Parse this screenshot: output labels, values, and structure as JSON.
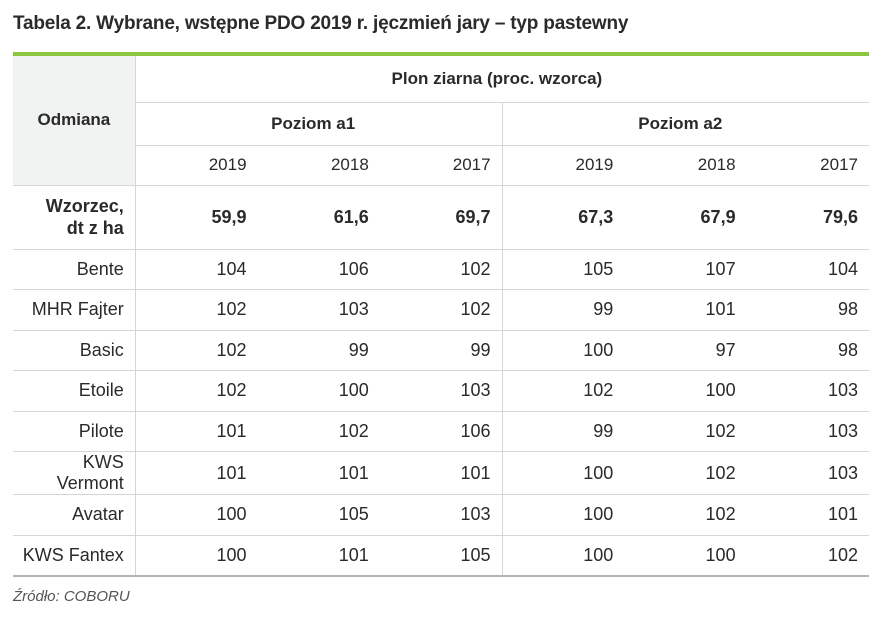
{
  "title": "Tabela 2. Wybrane, wstępne PDO 2019 r. jęczmień jary – typ pastewny",
  "header": {
    "odmiana": "Odmiana",
    "group_title": "Plon ziarna (proc. wzorca)",
    "level_a1": "Poziom a1",
    "level_a2": "Poziom a2",
    "years": [
      "2019",
      "2018",
      "2017",
      "2019",
      "2018",
      "2017"
    ]
  },
  "wzorzec": {
    "label_line1": "Wzorzec,",
    "label_line2": "dt z ha",
    "values": [
      "59,9",
      "61,6",
      "69,7",
      "67,3",
      "67,9",
      "79,6"
    ]
  },
  "rows": [
    {
      "name": "Bente",
      "values": [
        "104",
        "106",
        "102",
        "105",
        "107",
        "104"
      ]
    },
    {
      "name": "MHR Fajter",
      "values": [
        "102",
        "103",
        "102",
        "99",
        "101",
        "98"
      ]
    },
    {
      "name": "Basic",
      "values": [
        "102",
        "99",
        "99",
        "100",
        "97",
        "98"
      ]
    },
    {
      "name": "Etoile",
      "values": [
        "102",
        "100",
        "103",
        "102",
        "100",
        "103"
      ]
    },
    {
      "name": "Pilote",
      "values": [
        "101",
        "102",
        "106",
        "99",
        "102",
        "103"
      ]
    },
    {
      "name": "KWS Vermont",
      "values": [
        "101",
        "101",
        "101",
        "100",
        "102",
        "103"
      ]
    },
    {
      "name": "Avatar",
      "values": [
        "100",
        "105",
        "103",
        "100",
        "102",
        "101"
      ]
    },
    {
      "name": "KWS Fantex",
      "values": [
        "100",
        "101",
        "105",
        "100",
        "100",
        "102"
      ]
    }
  ],
  "source": "Źródło: COBORU",
  "colors": {
    "accent_rule": "#8cc63f",
    "header_bg": "#f1f2f2"
  }
}
